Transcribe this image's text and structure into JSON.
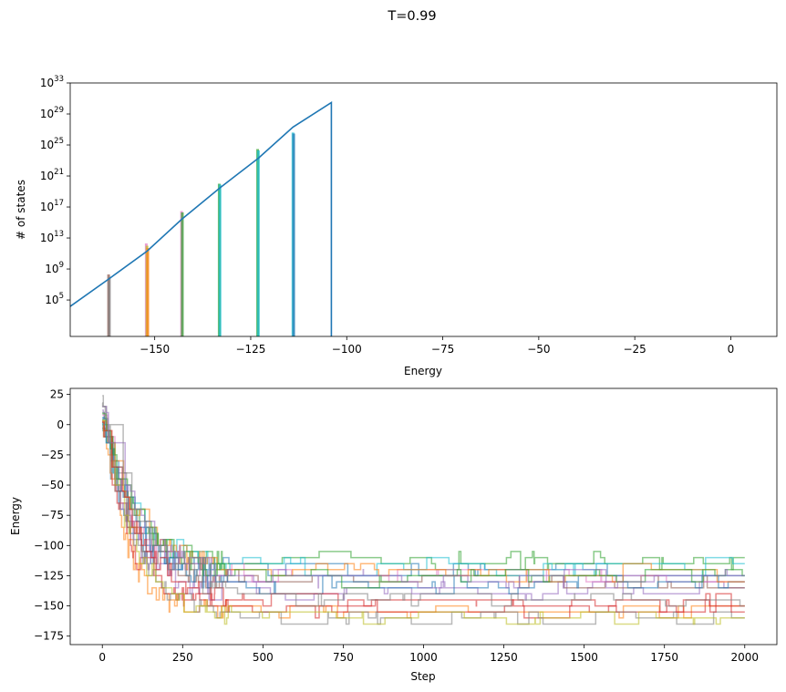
{
  "figure": {
    "title": "T=0.99"
  },
  "palette": [
    "#1f77b4",
    "#ff7f0e",
    "#2ca02c",
    "#d62728",
    "#9467bd",
    "#8c564b",
    "#e377c2",
    "#7f7f7f",
    "#bcbd22",
    "#17becf"
  ],
  "chart_data": [
    {
      "type": "line",
      "name": "density-of-states",
      "xlabel": "Energy",
      "ylabel": "# of states",
      "yscale": "log",
      "xlim": [
        -172,
        12
      ],
      "ylim": [
        2.0,
        1e+33
      ],
      "xticks": [
        -150,
        -125,
        -100,
        -75,
        -50,
        -25,
        0
      ],
      "yticks": [
        {
          "value": 100000.0,
          "base": "10",
          "exp": "5"
        },
        {
          "value": 1000000000.0,
          "base": "10",
          "exp": "9"
        },
        {
          "value": 10000000000000.0,
          "base": "10",
          "exp": "13"
        },
        {
          "value": 1e+17,
          "base": "10",
          "exp": "17"
        },
        {
          "value": 1e+21,
          "base": "10",
          "exp": "21"
        },
        {
          "value": 1e+25,
          "base": "10",
          "exp": "25"
        },
        {
          "value": 1e+29,
          "base": "10",
          "exp": "29"
        },
        {
          "value": 1e+33,
          "base": "10",
          "exp": "33"
        }
      ],
      "grid": false,
      "series": [
        {
          "color": "#1f77b4",
          "points": [
            [
              -172,
              15000.0
            ],
            [
              -162,
              50000000.0
            ],
            [
              -152,
              200000000000.0
            ],
            [
              -143,
              2500000000000000.0
            ],
            [
              -133,
              3e+19
            ],
            [
              -123,
              2e+23
            ],
            [
              -114,
              2e+27
            ],
            [
              -104,
              3e+30
            ],
            [
              -104,
              2.0
            ]
          ]
        }
      ],
      "bars": [
        {
          "x": -162,
          "top": 200000000.0,
          "color": "#8c564b"
        },
        {
          "x": -161.8,
          "top": 100000000.0,
          "color": "#7f7f7f"
        },
        {
          "x": -152.2,
          "top": 2000000000000.0,
          "color": "#e377c2"
        },
        {
          "x": -152,
          "top": 1000000000000.0,
          "color": "#bcbd22"
        },
        {
          "x": -151.8,
          "top": 500000000000.0,
          "color": "#ff7f0e"
        },
        {
          "x": -143,
          "top": 3e+16,
          "color": "#e377c2"
        },
        {
          "x": -142.8,
          "top": 2e+16,
          "color": "#2ca02c"
        },
        {
          "x": -133.2,
          "top": 1e+20,
          "color": "#2ca02c"
        },
        {
          "x": -133,
          "top": 8e+19,
          "color": "#17becf"
        },
        {
          "x": -123.2,
          "top": 3e+24,
          "color": "#2ca02c"
        },
        {
          "x": -123,
          "top": 2e+24,
          "color": "#17becf"
        },
        {
          "x": -114,
          "top": 4e+26,
          "color": "#17becf"
        },
        {
          "x": -113.8,
          "top": 3e+26,
          "color": "#1f77b4"
        }
      ]
    },
    {
      "type": "line",
      "name": "energy-traces",
      "xlabel": "Step",
      "ylabel": "Energy",
      "xlim": [
        -100,
        2100
      ],
      "ylim": [
        -182,
        30
      ],
      "xticks": [
        0,
        250,
        500,
        750,
        1000,
        1250,
        1500,
        1750,
        2000
      ],
      "yticks": [
        25,
        0,
        -25,
        -50,
        -75,
        -100,
        -125,
        -150,
        -175
      ],
      "grid": false,
      "alpha": 0.55,
      "series": [
        {
          "color": "#1f77b4",
          "start": 5,
          "end": -120
        },
        {
          "color": "#ff7f0e",
          "start": 0,
          "end": -155
        },
        {
          "color": "#2ca02c",
          "start": 10,
          "end": -112
        },
        {
          "color": "#d62728",
          "start": 2,
          "end": -152
        },
        {
          "color": "#9467bd",
          "start": 12,
          "end": -138
        },
        {
          "color": "#8c564b",
          "start": -3,
          "end": -130
        },
        {
          "color": "#e377c2",
          "start": 8,
          "end": -125
        },
        {
          "color": "#7f7f7f",
          "start": 24,
          "end": -160
        },
        {
          "color": "#bcbd22",
          "start": 4,
          "end": -160
        },
        {
          "color": "#17becf",
          "start": 1,
          "end": -118
        },
        {
          "color": "#1f77b4",
          "start": 6,
          "end": -133
        },
        {
          "color": "#ff7f0e",
          "start": 3,
          "end": -122
        },
        {
          "color": "#2ca02c",
          "start": 9,
          "end": -126
        },
        {
          "color": "#d62728",
          "start": 2,
          "end": -148
        },
        {
          "color": "#9467bd",
          "start": 15,
          "end": -128
        },
        {
          "color": "#7f7f7f",
          "start": 18,
          "end": -145
        }
      ]
    }
  ]
}
